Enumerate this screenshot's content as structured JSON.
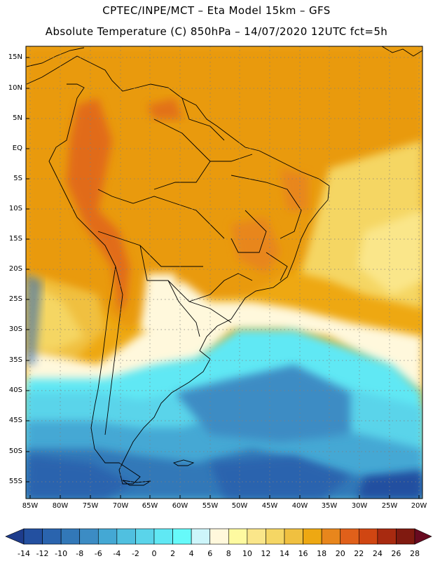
{
  "title": {
    "line1": "CPTEC/INPE/MCT –  Eta Model 15km – GFS",
    "line2": "Absolute Temperature (C) 850hPa – 14/07/2020 12UTC fct=5h"
  },
  "latitude_labels": [
    "15N",
    "10N",
    "5N",
    "EQ",
    "5S",
    "10S",
    "15S",
    "20S",
    "25S",
    "30S",
    "35S",
    "40S",
    "45S",
    "50S",
    "55S"
  ],
  "longitude_labels": [
    "85W",
    "80W",
    "75W",
    "70W",
    "65W",
    "60W",
    "55W",
    "50W",
    "45W",
    "40W",
    "35W",
    "30W",
    "25W",
    "20W"
  ],
  "colorbar": {
    "labels": [
      "-14",
      "-12",
      "-10",
      "-8",
      "-6",
      "-4",
      "-2",
      "0",
      "2",
      "4",
      "6",
      "8",
      "10",
      "12",
      "14",
      "16",
      "18",
      "20",
      "22",
      "24",
      "26",
      "28"
    ],
    "colors": [
      "#1e3c8c",
      "#2350a0",
      "#2a64ae",
      "#3278b8",
      "#3c8cc4",
      "#44a8d4",
      "#50c0e0",
      "#5ad4ea",
      "#60e8f4",
      "#66fafa",
      "#cdf5fa",
      "#fff8dc",
      "#fefaa0",
      "#fae68a",
      "#f5d664",
      "#f0c040",
      "#eea812",
      "#e8861c",
      "#e0601a",
      "#d04612",
      "#a82a10",
      "#801a10",
      "#680a20"
    ]
  },
  "legend_icon": "colorbar-triangles",
  "map_regions": {
    "south_america": "continent",
    "falklands": "islands"
  }
}
